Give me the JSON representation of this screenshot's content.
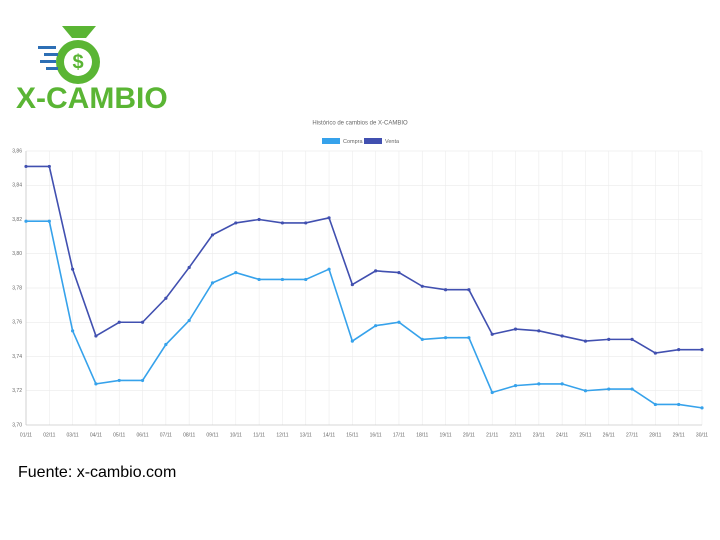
{
  "logo": "X-CAMBIO",
  "source": "Fuente: x-cambio.com",
  "chart_data": {
    "type": "line",
    "title": "Histórico de cambios de X-CAMBIO",
    "categories": [
      "01/11",
      "02/11",
      "03/11",
      "04/11",
      "05/11",
      "06/11",
      "07/11",
      "08/11",
      "09/11",
      "10/11",
      "11/11",
      "12/11",
      "13/11",
      "14/11",
      "15/11",
      "16/11",
      "17/11",
      "18/11",
      "19/11",
      "20/11",
      "21/11",
      "22/11",
      "23/11",
      "24/11",
      "25/11",
      "26/11",
      "27/11",
      "28/11",
      "29/11",
      "30/11"
    ],
    "series": [
      {
        "name": "Compra",
        "color": "#36a2eb",
        "values": [
          3.819,
          3.819,
          3.755,
          3.724,
          3.726,
          3.726,
          3.747,
          3.761,
          3.783,
          3.789,
          3.785,
          3.785,
          3.785,
          3.791,
          3.749,
          3.758,
          3.76,
          3.75,
          3.751,
          3.751,
          3.719,
          3.723,
          3.724,
          3.724,
          3.72,
          3.721,
          3.721,
          3.712,
          3.712,
          3.71
        ]
      },
      {
        "name": "Venta",
        "color": "#4150b0",
        "values": [
          3.851,
          3.851,
          3.791,
          3.752,
          3.76,
          3.76,
          3.774,
          3.792,
          3.811,
          3.818,
          3.82,
          3.818,
          3.818,
          3.821,
          3.782,
          3.79,
          3.789,
          3.781,
          3.779,
          3.779,
          3.753,
          3.756,
          3.755,
          3.752,
          3.749,
          3.75,
          3.75,
          3.742,
          3.744,
          3.744
        ]
      }
    ],
    "ylim": [
      3.7,
      3.86
    ],
    "yticks": [
      {
        "value": 3.7,
        "label": "3,70"
      },
      {
        "value": 3.72,
        "label": "3,72"
      },
      {
        "value": 3.74,
        "label": "3,74"
      },
      {
        "value": 3.76,
        "label": "3,76"
      },
      {
        "value": 3.78,
        "label": "3,78"
      },
      {
        "value": 3.8,
        "label": "3,80"
      },
      {
        "value": 3.82,
        "label": "3,82"
      },
      {
        "value": 3.84,
        "label": "3,84"
      },
      {
        "value": 3.86,
        "label": "3,86"
      }
    ],
    "grid": true
  }
}
